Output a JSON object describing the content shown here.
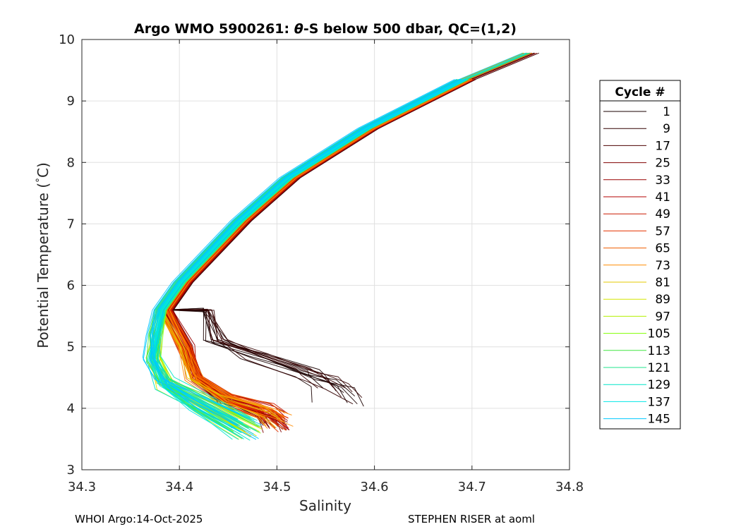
{
  "chart_data": {
    "type": "line",
    "title_prefix": "Argo WMO 5900261: ",
    "title_theta": "θ",
    "title_suffix": "-S below 500 dbar,  QC=(1,2)",
    "xlabel": "Salinity",
    "ylabel_prefix": "Potential Temperature (",
    "ylabel_degree": "°",
    "ylabel_suffix": "C)",
    "xlim": [
      34.3,
      34.8
    ],
    "ylim": [
      3,
      10
    ],
    "x_ticks": [
      "34.3",
      "34.4",
      "34.5",
      "34.6",
      "34.7",
      "34.8"
    ],
    "y_ticks": [
      "3",
      "4",
      "5",
      "6",
      "7",
      "8",
      "9",
      "10"
    ],
    "grid": true,
    "legend_title": "Cycle #",
    "legend_location": "outside-right",
    "legend_entries": [
      {
        "label": "1",
        "color": "#1a0000"
      },
      {
        "label": "9",
        "color": "#330000"
      },
      {
        "label": "17",
        "color": "#4d0000"
      },
      {
        "label": "25",
        "color": "#800000"
      },
      {
        "label": "33",
        "color": "#990000"
      },
      {
        "label": "41",
        "color": "#b30000"
      },
      {
        "label": "49",
        "color": "#cc1a00"
      },
      {
        "label": "57",
        "color": "#e63300"
      },
      {
        "label": "65",
        "color": "#f05c00"
      },
      {
        "label": "73",
        "color": "#ff8c00"
      },
      {
        "label": "81",
        "color": "#e6c800"
      },
      {
        "label": "89",
        "color": "#d4e600"
      },
      {
        "label": "97",
        "color": "#b3f000"
      },
      {
        "label": "105",
        "color": "#80ff00"
      },
      {
        "label": "113",
        "color": "#40e640"
      },
      {
        "label": "121",
        "color": "#20e68c"
      },
      {
        "label": "129",
        "color": "#00e6c8"
      },
      {
        "label": "137",
        "color": "#00e6e6"
      },
      {
        "label": "145",
        "color": "#00c8ff"
      }
    ],
    "series_shape": {
      "note": "Each profile follows the theta-S curve from warm/salty top to a salinity minimum near 4-5 C, then bends back to higher salinity at depth.",
      "upper_branch": [
        [
          34.765,
          9.78
        ],
        [
          34.7,
          9.35
        ],
        [
          34.6,
          8.55
        ],
        [
          34.52,
          7.75
        ],
        [
          34.47,
          7.05
        ],
        [
          34.44,
          6.55
        ],
        [
          34.41,
          6.05
        ],
        [
          34.39,
          5.6
        ]
      ],
      "early_cycles_bottom": [
        [
          34.43,
          5.6
        ],
        [
          34.44,
          5.1
        ],
        [
          34.48,
          4.85
        ],
        [
          34.53,
          4.55
        ],
        [
          34.55,
          4.45
        ],
        [
          34.565,
          4.2
        ]
      ],
      "mid_cycles_bottom": [
        [
          34.41,
          5.0
        ],
        [
          34.42,
          4.5
        ],
        [
          34.45,
          4.15
        ],
        [
          34.49,
          3.95
        ],
        [
          34.5,
          3.8
        ]
      ],
      "late_cycles_bottom": [
        [
          34.385,
          5.2
        ],
        [
          34.38,
          4.8
        ],
        [
          34.39,
          4.4
        ],
        [
          34.42,
          4.1
        ],
        [
          34.47,
          3.65
        ]
      ]
    }
  },
  "footer": {
    "left": "WHOI Argo:14-Oct-2025",
    "right": "STEPHEN RISER at aoml"
  }
}
